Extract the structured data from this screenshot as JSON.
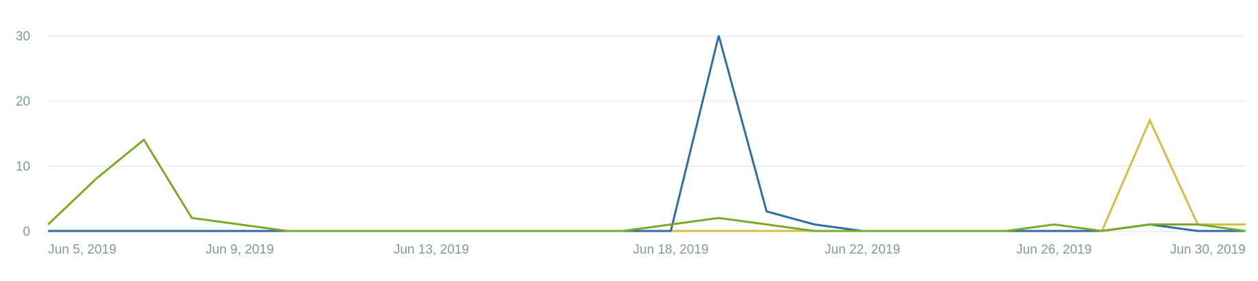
{
  "colors": {
    "background": "#ffffff",
    "gridline": "#e2e5e8",
    "tick_text": "#7f9c8e"
  },
  "chart_data": {
    "type": "line",
    "title": "",
    "xlabel": "",
    "ylabel": "",
    "x": [
      "2019-06-05",
      "2019-06-06",
      "2019-06-07",
      "2019-06-08",
      "2019-06-09",
      "2019-06-10",
      "2019-06-11",
      "2019-06-12",
      "2019-06-13",
      "2019-06-14",
      "2019-06-15",
      "2019-06-16",
      "2019-06-17",
      "2019-06-18",
      "2019-06-19",
      "2019-06-20",
      "2019-06-21",
      "2019-06-22",
      "2019-06-23",
      "2019-06-24",
      "2019-06-25",
      "2019-06-26",
      "2019-06-27",
      "2019-06-28",
      "2019-06-29",
      "2019-06-30"
    ],
    "ylim": [
      0,
      30
    ],
    "y_ticks": [
      {
        "value": 0,
        "label": "0"
      },
      {
        "value": 10,
        "label": "10"
      },
      {
        "value": 20,
        "label": "20"
      },
      {
        "value": 30,
        "label": "30"
      }
    ],
    "x_ticks": [
      {
        "date": "2019-06-05",
        "label": "Jun 5, 2019"
      },
      {
        "date": "2019-06-09",
        "label": "Jun 9, 2019"
      },
      {
        "date": "2019-06-13",
        "label": "Jun 13, 2019"
      },
      {
        "date": "2019-06-18",
        "label": "Jun 18, 2019"
      },
      {
        "date": "2019-06-22",
        "label": "Jun 22, 2019"
      },
      {
        "date": "2019-06-26",
        "label": "Jun 26, 2019"
      },
      {
        "date": "2019-06-30",
        "label": "Jun 30, 2019"
      }
    ],
    "grid": true,
    "legend": "none",
    "series": [
      {
        "color": "#d4bc4a",
        "values": [
          0,
          0,
          0,
          0,
          0,
          0,
          0,
          0,
          0,
          0,
          0,
          0,
          0,
          0,
          0,
          0,
          0,
          0,
          0,
          0,
          0,
          0,
          0,
          17,
          1,
          1
        ]
      },
      {
        "color": "#2f6da1",
        "values": [
          0,
          0,
          0,
          0,
          0,
          0,
          0,
          0,
          0,
          0,
          0,
          0,
          0,
          0,
          30,
          3,
          1,
          0,
          0,
          0,
          0,
          0,
          0,
          1,
          0,
          0
        ]
      },
      {
        "color": "#7aa928",
        "values": [
          1,
          8,
          14,
          2,
          1,
          0,
          0,
          0,
          0,
          0,
          0,
          0,
          0,
          1,
          2,
          1,
          0,
          0,
          0,
          0,
          0,
          1,
          0,
          1,
          1,
          0
        ]
      }
    ]
  }
}
